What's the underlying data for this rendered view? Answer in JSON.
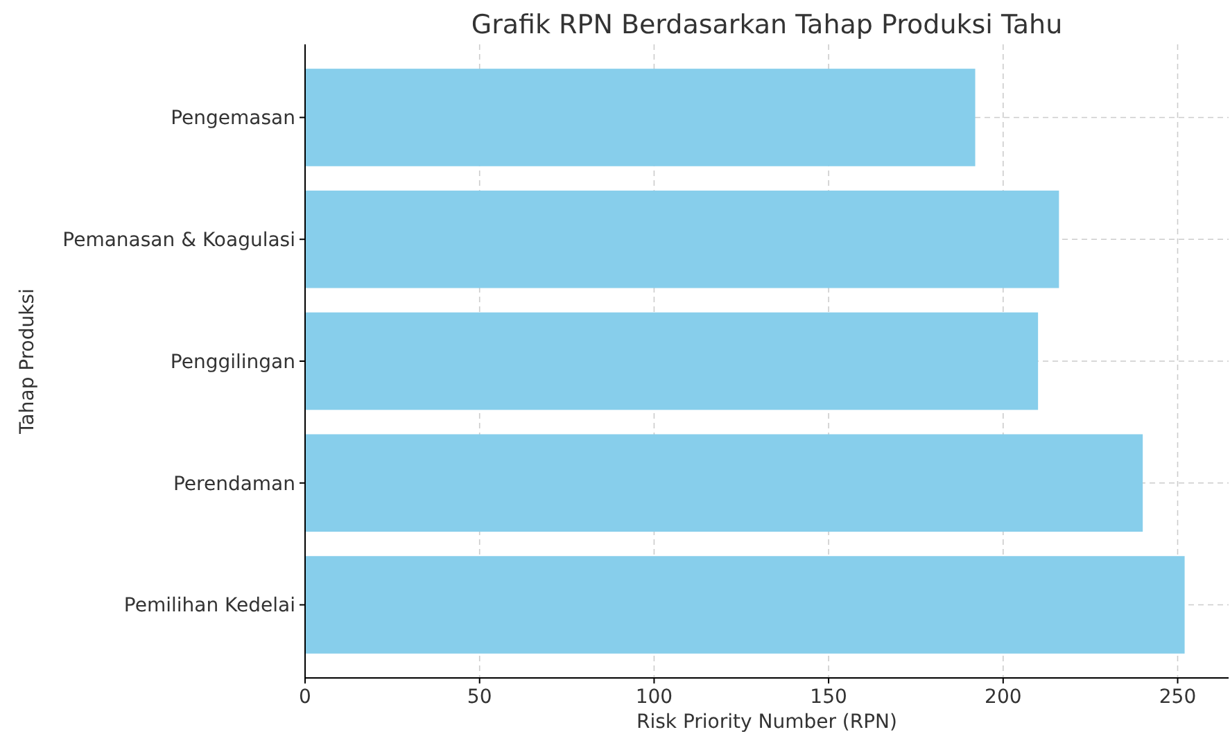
{
  "chart_data": {
    "type": "bar",
    "orientation": "horizontal",
    "title": "Grafik RPN Berdasarkan Tahap Produksi Tahu",
    "xlabel": "Risk Priority Number (RPN)",
    "ylabel": "Tahap Produksi",
    "categories": [
      "Pengemasan",
      "Pemanasan & Koagulasi",
      "Penggilingan",
      "Perendaman",
      "Pemilihan Kedelai"
    ],
    "values": [
      192,
      216,
      210,
      240,
      252
    ],
    "color": "#87ceeb",
    "xlim": [
      0,
      264.6
    ],
    "xticks": [
      0,
      50,
      100,
      150,
      200,
      250
    ],
    "grid": true
  }
}
